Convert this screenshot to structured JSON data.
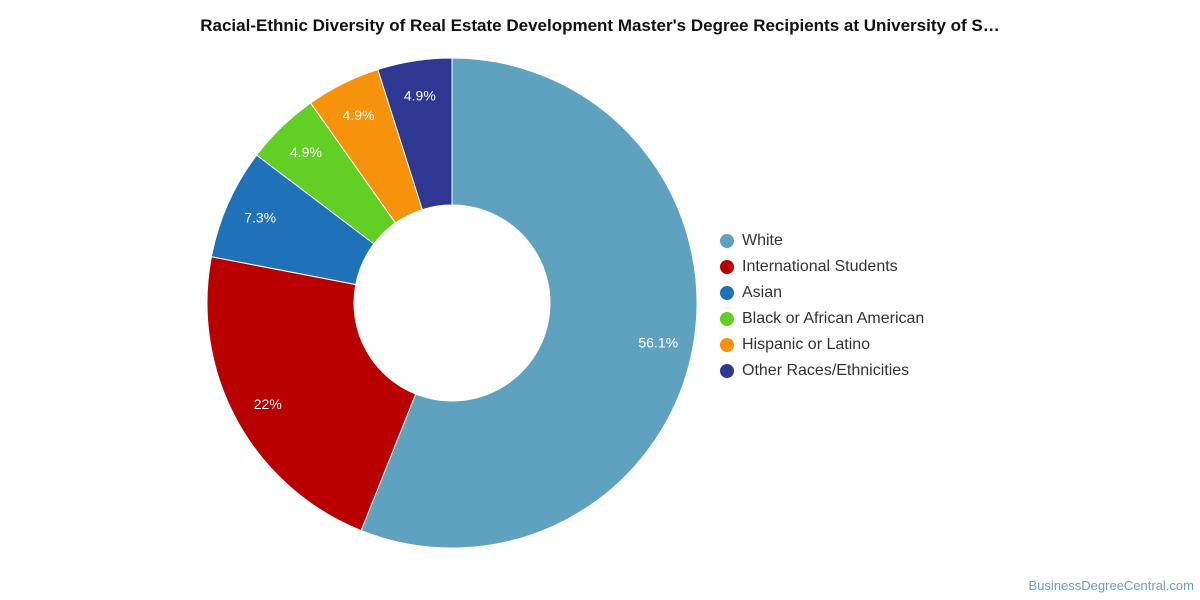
{
  "chart_data": {
    "type": "pie",
    "title": "Racial-Ethnic Diversity of Real Estate Development Master's Degree Recipients at University of S…",
    "categories": [
      "White",
      "International Students",
      "Asian",
      "Black or African American",
      "Hispanic or Latino",
      "Other Races/Ethnicities"
    ],
    "values": [
      56.1,
      22,
      7.3,
      4.9,
      4.9,
      4.9
    ],
    "value_labels": [
      "56.1%",
      "22%",
      "7.3%",
      "4.9%",
      "4.9%",
      "4.9%"
    ],
    "colors": [
      "#5ea2bf",
      "#b80000",
      "#1f72b8",
      "#62cf24",
      "#f7930a",
      "#2e3792"
    ],
    "donut": true,
    "legend_position": "right"
  },
  "watermark": "BusinessDegreeCentral.com"
}
